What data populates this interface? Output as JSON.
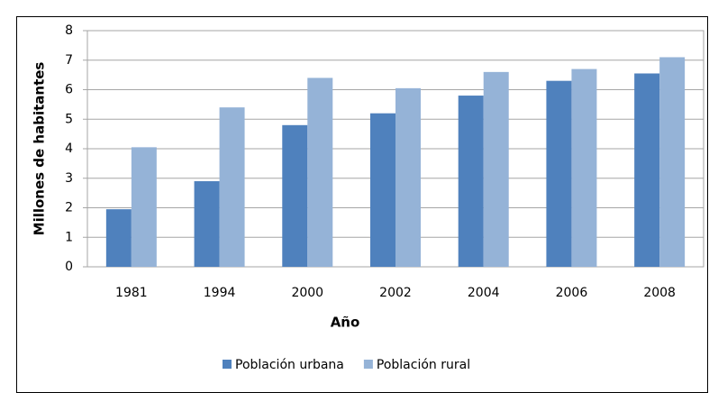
{
  "chart_data": {
    "type": "bar",
    "categories": [
      "1981",
      "1994",
      "2000",
      "2002",
      "2004",
      "2006",
      "2008"
    ],
    "series": [
      {
        "name": "Población urbana",
        "color": "#4f81bd",
        "values": [
          1.95,
          2.9,
          4.8,
          5.2,
          5.8,
          6.3,
          6.55
        ]
      },
      {
        "name": "Población rural",
        "color": "#95b3d7",
        "values": [
          4.05,
          5.4,
          6.4,
          6.05,
          6.6,
          6.7,
          7.1
        ]
      }
    ],
    "xlabel": "Año",
    "ylabel": "Millones de habitantes",
    "ylim": [
      0,
      8
    ],
    "yticks": [
      0,
      1,
      2,
      3,
      4,
      5,
      6,
      7,
      8
    ],
    "grid": true,
    "legend": "bottom"
  }
}
